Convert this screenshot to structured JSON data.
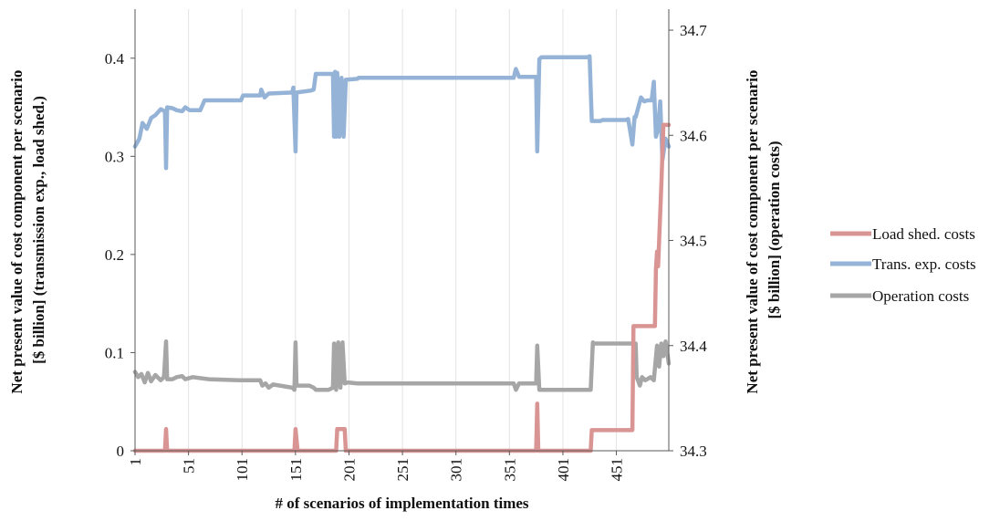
{
  "chart_data": {
    "type": "line",
    "title": "",
    "xlabel": "# of scenarios of implementation times",
    "ylabel_left": [
      "Net present value of cost component per scenario",
      "[$ billion]  (transmission  exp., load shed.)"
    ],
    "ylabel_right": [
      "Net present value of cost component per scenario",
      "[$ billion]  (operation costs)"
    ],
    "xlim": [
      1,
      500
    ],
    "ylim_left": [
      0,
      0.45
    ],
    "ylim_right": [
      34.3,
      34.72
    ],
    "x_ticks": [
      "1",
      "51",
      "101",
      "151",
      "201",
      "251",
      "301",
      "351",
      "401",
      "451"
    ],
    "y_ticks_left": [
      "0",
      "0.1",
      "0.2",
      "0.3",
      "0.4"
    ],
    "y_ticks_right": [
      "34.3",
      "34.4",
      "34.5",
      "34.6",
      "34.7"
    ],
    "grid": "vertical",
    "legend_position": "right",
    "series": [
      {
        "name": "Load shed. costs",
        "axis": "left",
        "color": "#d99594",
        "points": [
          [
            1,
            0
          ],
          [
            29,
            0
          ],
          [
            30,
            0.022
          ],
          [
            31,
            0
          ],
          [
            150,
            0
          ],
          [
            151,
            0.022
          ],
          [
            153,
            0
          ],
          [
            189,
            0
          ],
          [
            190,
            0.022
          ],
          [
            197,
            0.022
          ],
          [
            198,
            0
          ],
          [
            376,
            0
          ],
          [
            377,
            0.048
          ],
          [
            378,
            0
          ],
          [
            427,
            0
          ],
          [
            428,
            0.021
          ],
          [
            466,
            0.021
          ],
          [
            467,
            0.127
          ],
          [
            487,
            0.127
          ],
          [
            488,
            0.185
          ],
          [
            489,
            0.203
          ],
          [
            490,
            0.188
          ],
          [
            493,
            0.27
          ],
          [
            495,
            0.332
          ],
          [
            500,
            0.332
          ]
        ]
      },
      {
        "name": "Trans. exp. costs",
        "axis": "left",
        "color": "#95b3d7",
        "points": [
          [
            1,
            0.31
          ],
          [
            5,
            0.318
          ],
          [
            8,
            0.334
          ],
          [
            12,
            0.328
          ],
          [
            16,
            0.339
          ],
          [
            20,
            0.342
          ],
          [
            25,
            0.348
          ],
          [
            29,
            0.346
          ],
          [
            30,
            0.288
          ],
          [
            31,
            0.35
          ],
          [
            36,
            0.349
          ],
          [
            40,
            0.347
          ],
          [
            45,
            0.346
          ],
          [
            48,
            0.35
          ],
          [
            52,
            0.347
          ],
          [
            62,
            0.347
          ],
          [
            66,
            0.357
          ],
          [
            100,
            0.357
          ],
          [
            102,
            0.362
          ],
          [
            118,
            0.362
          ],
          [
            119,
            0.368
          ],
          [
            122,
            0.36
          ],
          [
            126,
            0.364
          ],
          [
            148,
            0.365
          ],
          [
            149,
            0.37
          ],
          [
            151,
            0.305
          ],
          [
            152,
            0.365
          ],
          [
            165,
            0.367
          ],
          [
            168,
            0.368
          ],
          [
            170,
            0.384
          ],
          [
            186,
            0.384
          ],
          [
            187,
            0.32
          ],
          [
            188,
            0.386
          ],
          [
            189,
            0.32
          ],
          [
            190,
            0.385
          ],
          [
            192,
            0.32
          ],
          [
            194,
            0.38
          ],
          [
            196,
            0.32
          ],
          [
            198,
            0.378
          ],
          [
            209,
            0.379
          ],
          [
            210,
            0.38
          ],
          [
            355,
            0.38
          ],
          [
            357,
            0.389
          ],
          [
            360,
            0.381
          ],
          [
            376,
            0.381
          ],
          [
            377,
            0.305
          ],
          [
            379,
            0.399
          ],
          [
            381,
            0.401
          ],
          [
            424,
            0.401
          ],
          [
            426,
            0.402
          ],
          [
            428,
            0.336
          ],
          [
            436,
            0.336
          ],
          [
            438,
            0.337
          ],
          [
            460,
            0.337
          ],
          [
            462,
            0.338
          ],
          [
            466,
            0.312
          ],
          [
            468,
            0.34
          ],
          [
            469,
            0.34
          ],
          [
            471,
            0.348
          ],
          [
            474,
            0.36
          ],
          [
            477,
            0.356
          ],
          [
            480,
            0.357
          ],
          [
            484,
            0.357
          ],
          [
            486,
            0.376
          ],
          [
            488,
            0.32
          ],
          [
            490,
            0.328
          ],
          [
            492,
            0.356
          ],
          [
            494,
            0.296
          ],
          [
            497,
            0.318
          ],
          [
            500,
            0.31
          ]
        ]
      },
      {
        "name": "Operation costs",
        "axis": "right",
        "color": "#a6a6a6",
        "points": [
          [
            1,
            34.375
          ],
          [
            4,
            34.37
          ],
          [
            7,
            34.373
          ],
          [
            10,
            34.365
          ],
          [
            13,
            34.374
          ],
          [
            16,
            34.366
          ],
          [
            20,
            34.372
          ],
          [
            25,
            34.367
          ],
          [
            28,
            34.37
          ],
          [
            30,
            34.404
          ],
          [
            31,
            34.368
          ],
          [
            36,
            34.368
          ],
          [
            40,
            34.37
          ],
          [
            45,
            34.371
          ],
          [
            48,
            34.368
          ],
          [
            55,
            34.37
          ],
          [
            70,
            34.368
          ],
          [
            100,
            34.367
          ],
          [
            118,
            34.367
          ],
          [
            120,
            34.362
          ],
          [
            123,
            34.364
          ],
          [
            126,
            34.36
          ],
          [
            130,
            34.363
          ],
          [
            148,
            34.36
          ],
          [
            150,
            34.358
          ],
          [
            151,
            34.403
          ],
          [
            152,
            34.362
          ],
          [
            164,
            34.362
          ],
          [
            168,
            34.36
          ],
          [
            170,
            34.358
          ],
          [
            182,
            34.358
          ],
          [
            186,
            34.36
          ],
          [
            187,
            34.402
          ],
          [
            189,
            34.358
          ],
          [
            191,
            34.403
          ],
          [
            193,
            34.36
          ],
          [
            195,
            34.403
          ],
          [
            197,
            34.364
          ],
          [
            200,
            34.365
          ],
          [
            209,
            34.364
          ],
          [
            212,
            34.364
          ],
          [
            355,
            34.364
          ],
          [
            357,
            34.358
          ],
          [
            360,
            34.364
          ],
          [
            376,
            34.364
          ],
          [
            377,
            34.4
          ],
          [
            379,
            34.358
          ],
          [
            427,
            34.358
          ],
          [
            429,
            34.403
          ],
          [
            430,
            34.402
          ],
          [
            469,
            34.402
          ],
          [
            470,
            34.37
          ],
          [
            473,
            34.362
          ],
          [
            475,
            34.37
          ],
          [
            478,
            34.367
          ],
          [
            483,
            34.37
          ],
          [
            486,
            34.367
          ],
          [
            489,
            34.4
          ],
          [
            491,
            34.38
          ],
          [
            493,
            34.402
          ],
          [
            495,
            34.39
          ],
          [
            497,
            34.404
          ],
          [
            500,
            34.383
          ]
        ]
      }
    ]
  }
}
